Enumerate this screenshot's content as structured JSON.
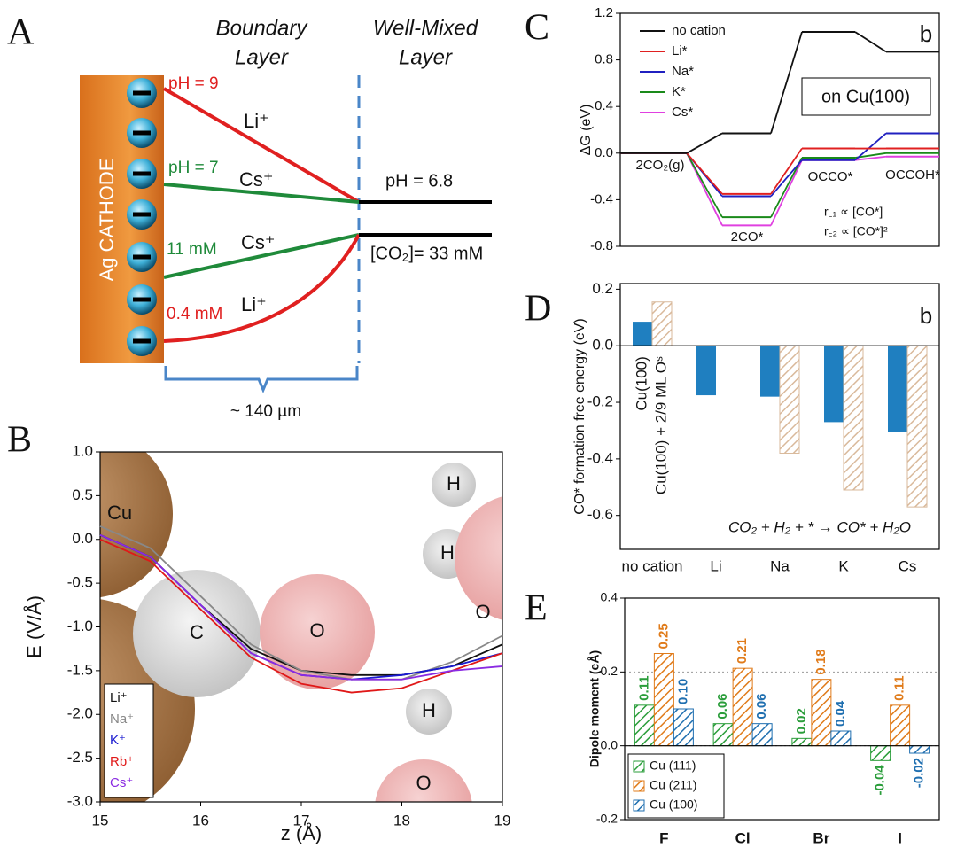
{
  "panel_labels": [
    "A",
    "B",
    "C",
    "D",
    "E"
  ],
  "diagram_a": {
    "boundary_layer": [
      "Boundary",
      "Layer"
    ],
    "well_mixed_layer": [
      "Well-Mixed",
      "Layer"
    ],
    "electrode": "Ag CATHODE",
    "ph_li": "pH = 9",
    "ion_li_top": "Li⁺",
    "ph_cs": "pH = 7",
    "ion_cs_top": "Cs⁺",
    "ph_bulk": "pH = 6.8",
    "co2_cs": "11 mM",
    "ion_cs_bottom": "Cs⁺",
    "co2_bulk": "[CO₂]= 33 mM",
    "co2_li": "0.4 mM",
    "ion_li_bottom": "Li⁺",
    "thickness": "~ 140 µm"
  },
  "chart_data": [
    {
      "type": "line",
      "xlabel": "z (Å)",
      "ylabel": "E (V/Å)",
      "x": [
        15,
        15.5,
        16,
        16.5,
        17,
        17.5,
        18,
        18.5,
        19
      ],
      "xlim": [
        15,
        19
      ],
      "xticks": [
        15,
        16,
        17,
        18,
        19
      ],
      "ylim": [
        -3,
        1
      ],
      "yticks": [
        {
          "value": 1,
          "label": "1.0"
        },
        0.5,
        {
          "value": 0,
          "label": "0.0"
        },
        -0.5,
        {
          "value": -1,
          "label": "-1.0"
        },
        -1.5,
        {
          "value": -2,
          "label": "-2.0"
        },
        -2.5,
        {
          "value": -3,
          "label": "-3.0"
        }
      ],
      "atom_labels": [
        "Cu",
        "Cu",
        "C",
        "O",
        "H",
        "H",
        "O",
        "H",
        "O"
      ],
      "legend": "lower left",
      "series": [
        {
          "name": "Li⁺",
          "color": "#111111",
          "values": [
            0.05,
            -0.2,
            -0.75,
            -1.25,
            -1.5,
            -1.55,
            -1.55,
            -1.45,
            -1.2
          ]
        },
        {
          "name": "Na⁺",
          "color": "#888888",
          "values": [
            0.15,
            -0.1,
            -0.65,
            -1.2,
            -1.5,
            -1.6,
            -1.6,
            -1.4,
            -1.1
          ]
        },
        {
          "name": "K⁺",
          "color": "#1a1ad0",
          "values": [
            0.05,
            -0.2,
            -0.75,
            -1.3,
            -1.55,
            -1.6,
            -1.55,
            -1.45,
            -1.3
          ]
        },
        {
          "name": "Rb⁺",
          "color": "#e01818",
          "values": [
            0.0,
            -0.25,
            -0.8,
            -1.35,
            -1.65,
            -1.75,
            -1.7,
            -1.5,
            -1.3
          ]
        },
        {
          "name": "Cs⁺",
          "color": "#8a2be2",
          "values": [
            0.05,
            -0.2,
            -0.75,
            -1.3,
            -1.55,
            -1.6,
            -1.6,
            -1.5,
            -1.45
          ]
        }
      ]
    },
    {
      "type": "step",
      "ylabel": "ΔG (eV)",
      "panel_tag": "b",
      "surface": "on Cu(100)",
      "notes": [
        "r꜀₁ ∝ [CO*]",
        "r꜀₂ ∝ [CO*]²"
      ],
      "categories": [
        "2CO₂(g)",
        "2CO*",
        "OCCO*",
        "OCCOH*"
      ],
      "ylim": [
        -0.8,
        1.2
      ],
      "yticks": [
        -0.8,
        -0.4,
        {
          "value": 0,
          "label": "0.0"
        },
        0.4,
        0.8,
        1.2
      ],
      "legend": "upper left",
      "series": [
        {
          "name": "no cation",
          "color": "#111111",
          "values": [
            0,
            0.17,
            1.04,
            0.87
          ]
        },
        {
          "name": "Li*",
          "color": "#e02020",
          "values": [
            0,
            -0.35,
            0.04,
            0.04
          ]
        },
        {
          "name": "Na*",
          "color": "#2020c0",
          "values": [
            0,
            -0.37,
            -0.06,
            0.17
          ]
        },
        {
          "name": "K*",
          "color": "#1a8a1a",
          "values": [
            0,
            -0.55,
            -0.04,
            0.0
          ]
        },
        {
          "name": "Cs*",
          "color": "#e040e0",
          "values": [
            0,
            -0.62,
            -0.06,
            -0.03
          ]
        }
      ]
    },
    {
      "type": "bar",
      "ylabel": "CO* formation free energy (eV)",
      "panel_tag": "b",
      "annotation": "CO₂ + H₂ + * → CO* + H₂O",
      "categories": [
        "no cation",
        "Li",
        "Na",
        "K",
        "Cs"
      ],
      "ylim": [
        -0.72,
        0.22
      ],
      "yticks": [
        -0.6,
        -0.4,
        -0.2,
        {
          "value": 0,
          "label": "0.0"
        },
        0.2
      ],
      "series": [
        {
          "name": "Cu(100)",
          "color": "#1f7fc0",
          "hatch": false,
          "values": [
            0.085,
            -0.175,
            -0.18,
            -0.27,
            -0.305
          ]
        },
        {
          "name": "Cu(100) + 2/9 ML Oˢ",
          "color": "#d9b99b",
          "hatch": true,
          "values": [
            0.155,
            null,
            -0.38,
            -0.51,
            -0.57
          ]
        }
      ]
    },
    {
      "type": "bar",
      "ylabel": "Dipole moment (eÅ)",
      "categories": [
        "F",
        "Cl",
        "Br",
        "I"
      ],
      "ylim": [
        -0.2,
        0.4
      ],
      "yticks": [
        -0.2,
        {
          "value": 0,
          "label": "0.0"
        },
        0.2,
        0.4
      ],
      "grid": true,
      "legend": "lower left",
      "series": [
        {
          "name": "Cu (111)",
          "color": "#2a9d3a",
          "hatch": true,
          "values": [
            0.11,
            0.06,
            0.02,
            -0.04
          ],
          "value_labels": [
            "0.11",
            "0.06",
            "0.02",
            "-0.04"
          ]
        },
        {
          "name": "Cu (211)",
          "color": "#e07b1a",
          "hatch": true,
          "values": [
            0.25,
            0.21,
            0.18,
            0.11
          ],
          "value_labels": [
            "0.25",
            "0.21",
            "0.18",
            "0.11"
          ]
        },
        {
          "name": "Cu (100)",
          "color": "#1f6fb0",
          "hatch": true,
          "values": [
            0.1,
            0.06,
            0.04,
            -0.02
          ],
          "value_labels": [
            "0.10",
            "0.06",
            "0.04",
            "-0.02"
          ]
        }
      ]
    }
  ]
}
